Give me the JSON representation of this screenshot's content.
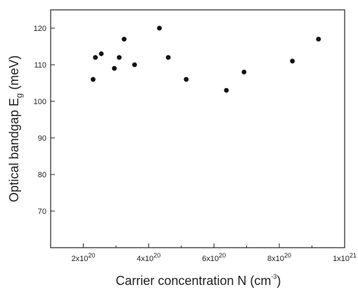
{
  "chart_data": {
    "type": "scatter",
    "title": "",
    "xlabel": {
      "main": "Carrier concentration N (cm",
      "sup": "-3",
      "tail": ")"
    },
    "ylabel": {
      "main": "Optical bandgap E",
      "sub": "g",
      "tail": " (meV)"
    },
    "xlim": [
      1e+20,
      1e+21
    ],
    "ylim": [
      60,
      125
    ],
    "x_ticks": [
      {
        "value": 2e+20,
        "mant": "2x10",
        "exp": "20"
      },
      {
        "value": 4e+20,
        "mant": "4x10",
        "exp": "20"
      },
      {
        "value": 6e+20,
        "mant": "6x10",
        "exp": "20"
      },
      {
        "value": 8e+20,
        "mant": "8x10",
        "exp": "20"
      },
      {
        "value": 1e+21,
        "mant": "1x10",
        "exp": "21"
      }
    ],
    "y_ticks": [
      70,
      80,
      90,
      100,
      110,
      120
    ],
    "grid": false,
    "marker_color": "#111111",
    "points": [
      {
        "x": 2.3e+20,
        "y": 106
      },
      {
        "x": 2.37e+20,
        "y": 112
      },
      {
        "x": 2.55e+20,
        "y": 113
      },
      {
        "x": 2.95e+20,
        "y": 109
      },
      {
        "x": 3.1e+20,
        "y": 112
      },
      {
        "x": 3.25e+20,
        "y": 117
      },
      {
        "x": 3.57e+20,
        "y": 110
      },
      {
        "x": 4.33e+20,
        "y": 120
      },
      {
        "x": 4.6e+20,
        "y": 112
      },
      {
        "x": 5.15e+20,
        "y": 106
      },
      {
        "x": 6.38e+20,
        "y": 103
      },
      {
        "x": 6.92e+20,
        "y": 108
      },
      {
        "x": 8.4e+20,
        "y": 111
      },
      {
        "x": 9.2e+20,
        "y": 117
      }
    ]
  }
}
